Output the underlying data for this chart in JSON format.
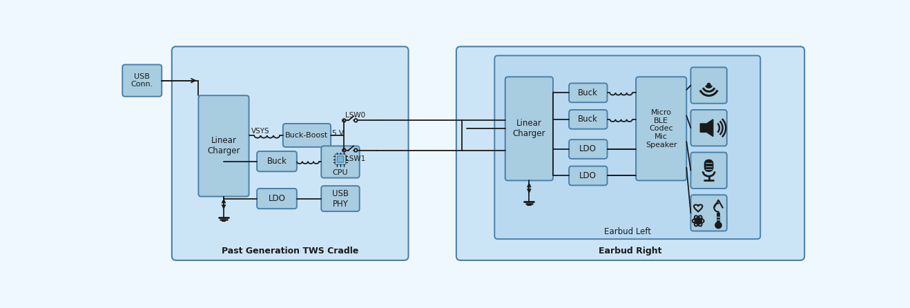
{
  "bg_color": "#f0f8ff",
  "outer_fill_light": "#cce5f6",
  "inner_fill": "#b8d9f0",
  "box_fill": "#a8cce0",
  "box_edge": "#4a7fa8",
  "outer_edge": "#4a7fa8",
  "line_color": "#1a1a1a",
  "text_color": "#1a1a1a",
  "title_cradle": "Past Generation TWS Cradle",
  "title_right": "Earbud Right",
  "title_left": "Earbud Left"
}
